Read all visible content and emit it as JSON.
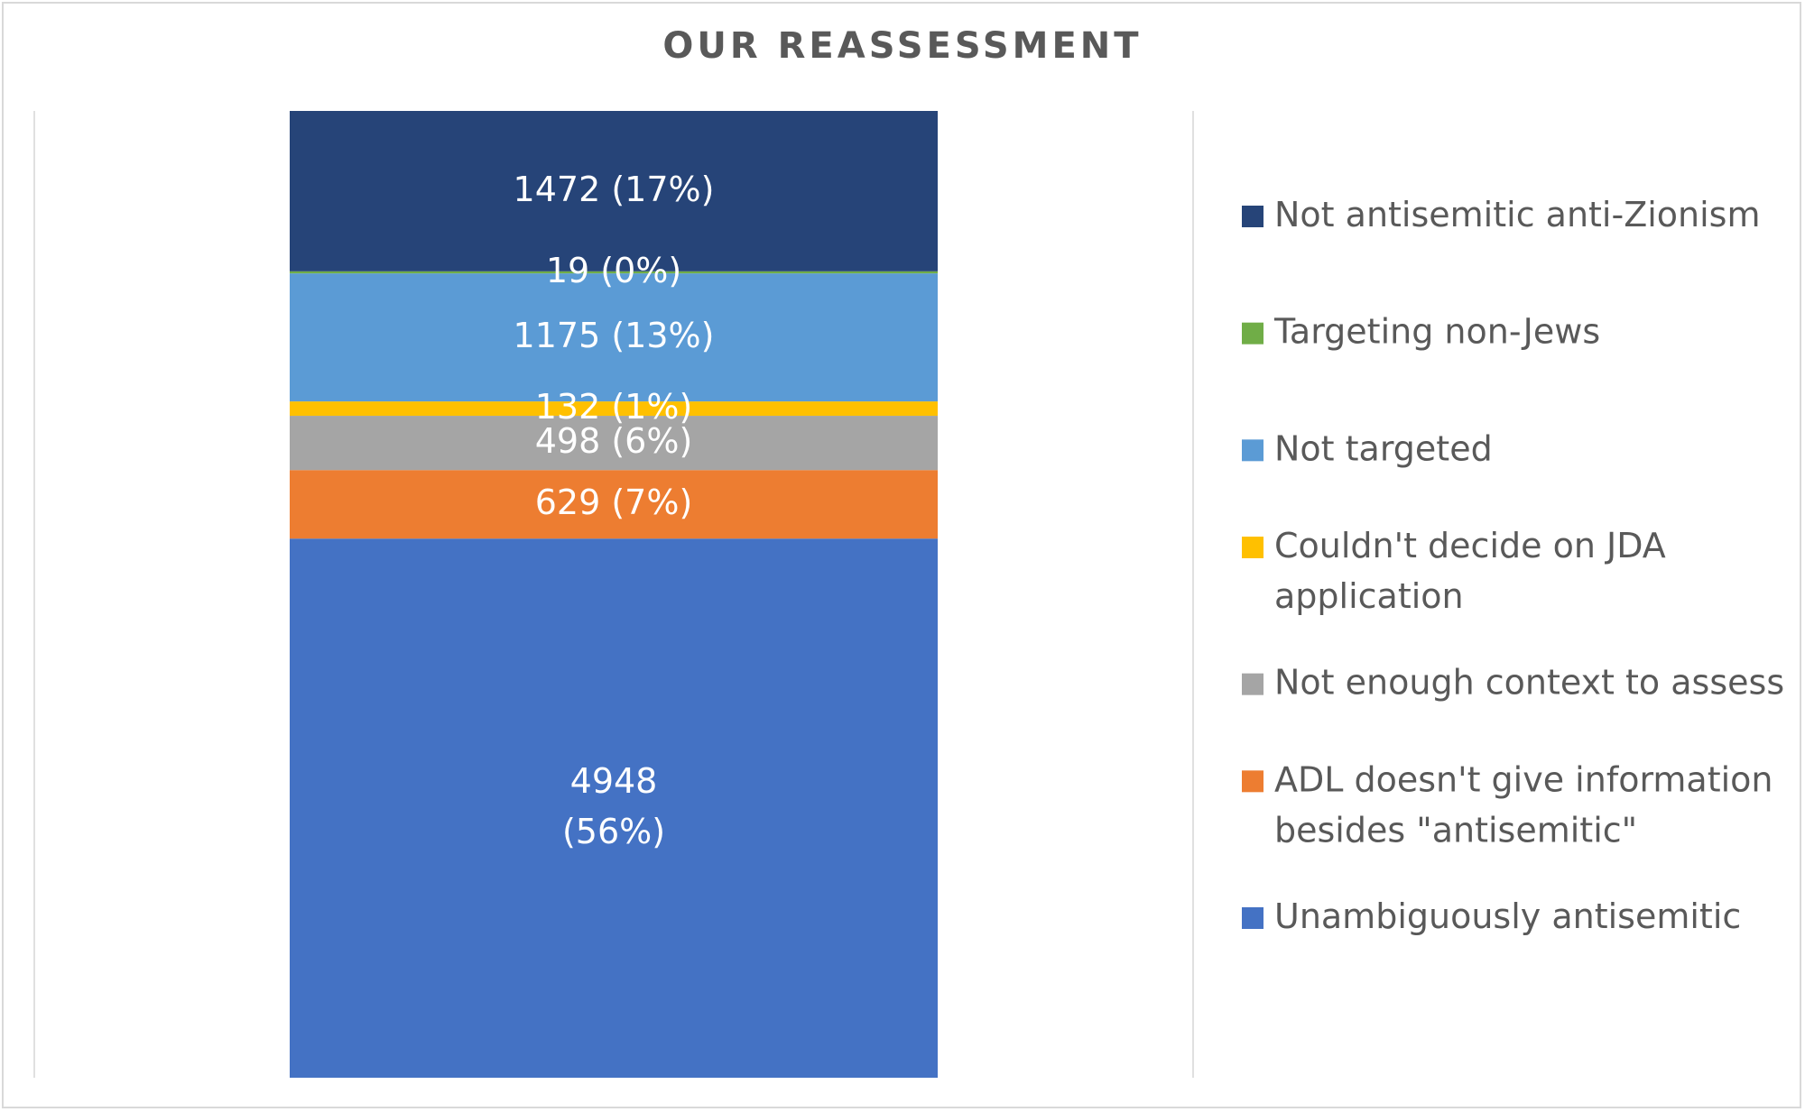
{
  "chart_data": {
    "type": "bar",
    "stacked": true,
    "title": "OUR REASSESSMENT",
    "xlabel": "",
    "ylabel": "",
    "legend_position": "right",
    "grid": false,
    "ylim": [
      0,
      8873
    ],
    "series": [
      {
        "name": "Unambiguously antisemitic",
        "value": 4948,
        "label_lines": [
          "4948",
          "(56%)"
        ],
        "color": "#4472C4"
      },
      {
        "name": "ADL doesn't give information besides \"antisemitic\"",
        "legend_lines": [
          "ADL doesn't give information",
          "besides \"antisemitic\""
        ],
        "value": 629,
        "label_lines": [
          "629 (7%)"
        ],
        "color": "#ED7D31"
      },
      {
        "name": "Not enough context to assess",
        "value": 498,
        "label_lines": [
          "498 (6%)"
        ],
        "color": "#A5A5A5"
      },
      {
        "name": "Couldn't decide on JDA application",
        "legend_lines": [
          "Couldn't decide on JDA",
          "application"
        ],
        "value": 132,
        "label_lines": [
          "132 (1%)"
        ],
        "color": "#FFC000"
      },
      {
        "name": "Not targeted",
        "value": 1175,
        "label_lines": [
          "1175 (13%)"
        ],
        "color": "#5B9BD5"
      },
      {
        "name": "Targeting non-Jews",
        "value": 19,
        "label_lines": [
          "19 (0%)"
        ],
        "color": "#70AD47"
      },
      {
        "name": "Not antisemitic anti-Zionism",
        "value": 1472,
        "label_lines": [
          "1472 (17%)"
        ],
        "color": "#264478"
      }
    ]
  }
}
